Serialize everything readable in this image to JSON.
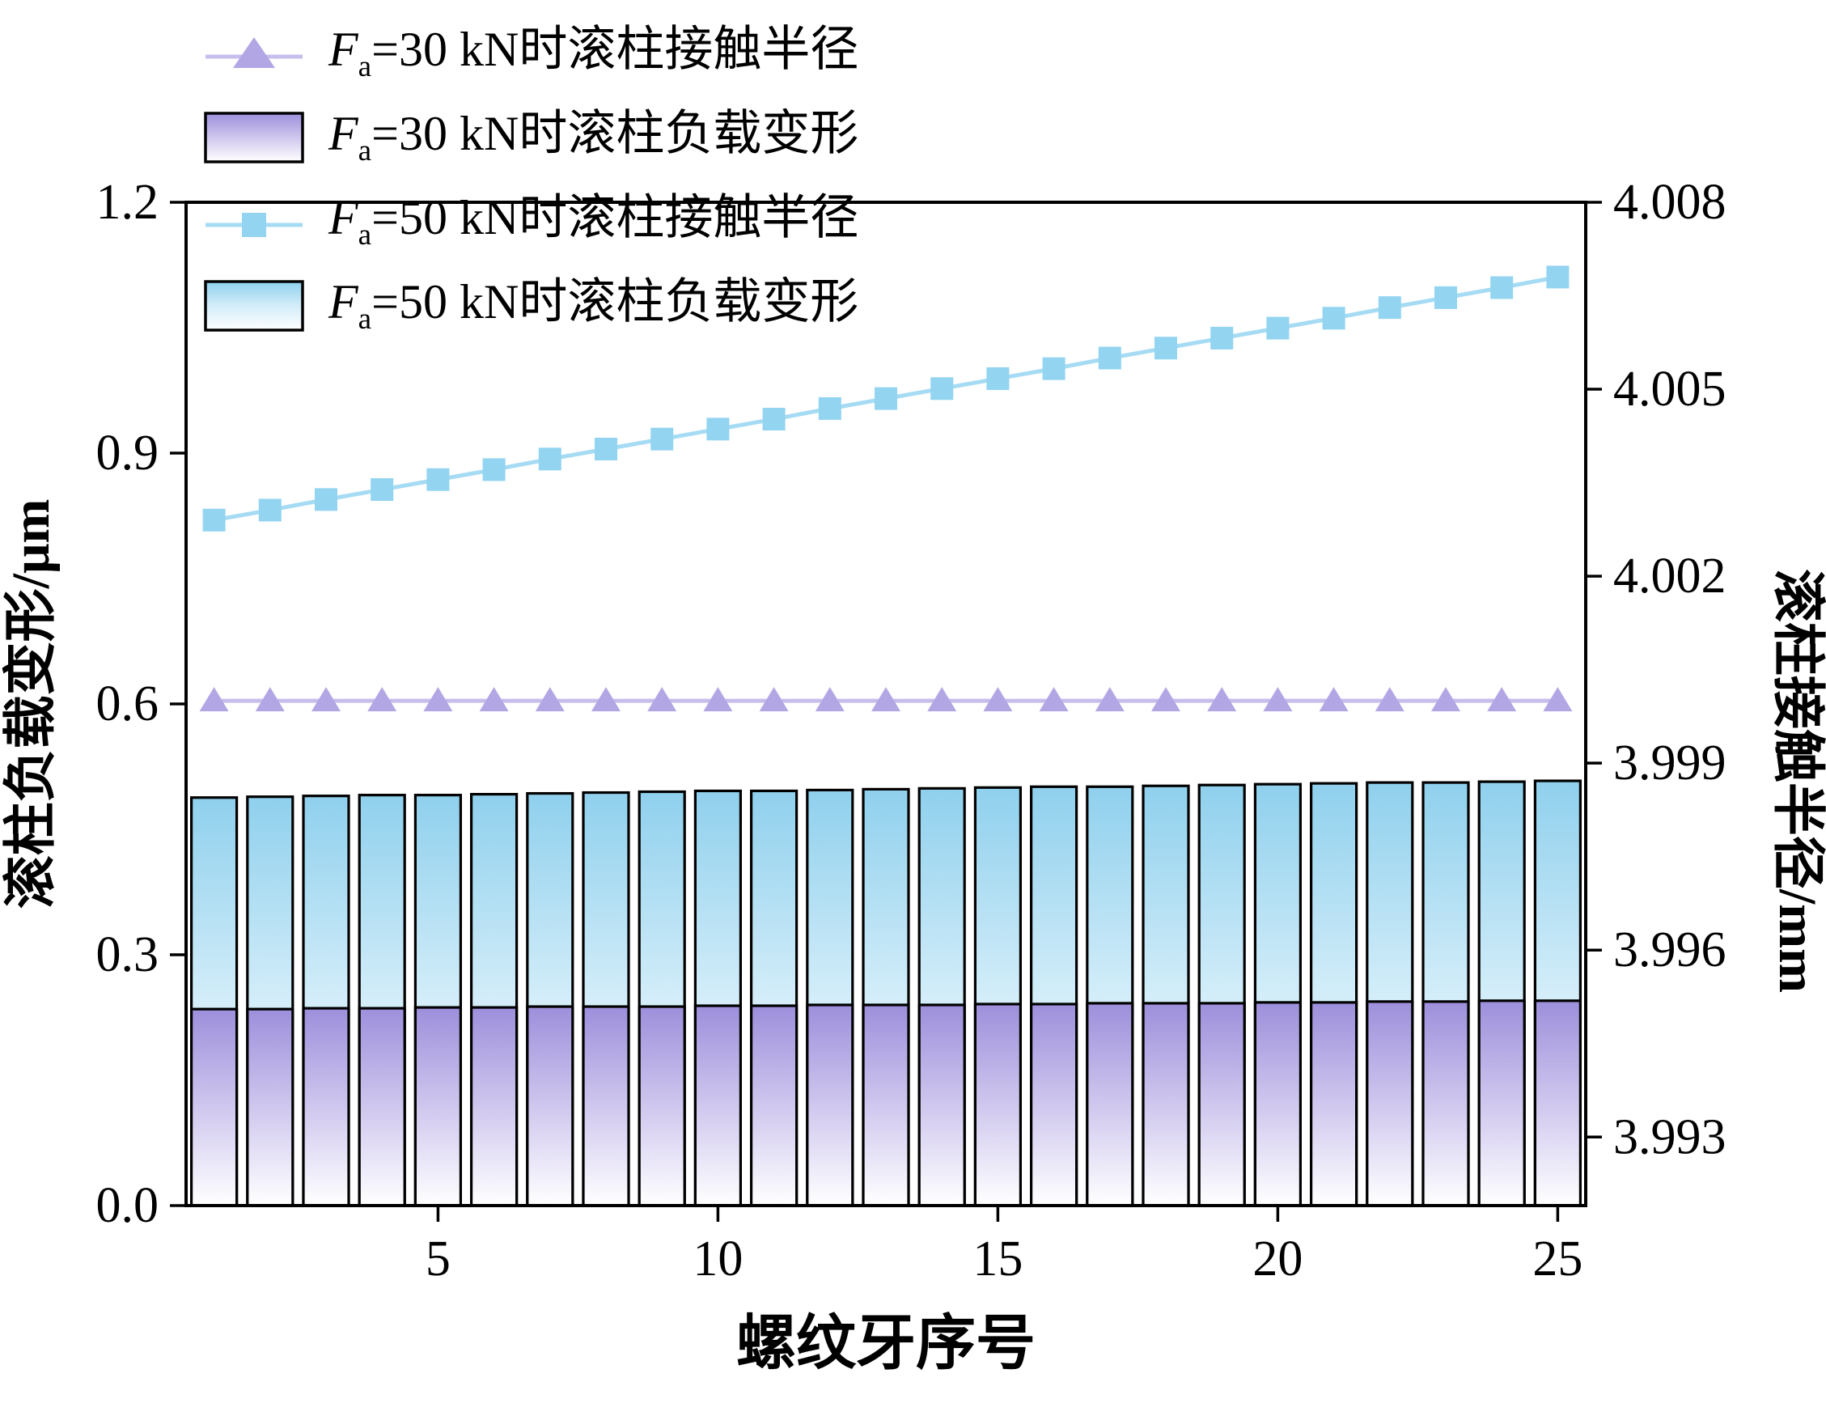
{
  "legend": {
    "items": [
      {
        "f": "F",
        "sub": "a",
        "rest": "=30 kN时滚柱接触半径",
        "type": "line-triangle"
      },
      {
        "f": "F",
        "sub": "a",
        "rest": "=30 kN时滚柱负载变形",
        "type": "bar-purple-gradient"
      },
      {
        "f": "F",
        "sub": "a",
        "rest": "=50 kN时滚柱接触半径",
        "type": "line-square"
      },
      {
        "f": "F",
        "sub": "a",
        "rest": "=50 kN时滚柱负载变形",
        "type": "bar-blue-gradient"
      }
    ],
    "position": "top-left"
  },
  "colors": {
    "line30": "#c7beeb",
    "mark30": "#b3a6e4",
    "bar30": "#9d8fdb",
    "bar30_mid": "#cfc7ee",
    "line50": "#a5dbf3",
    "mark50": "#93d4f0",
    "bar50": "#8fd0ed",
    "bar50_mid": "#d3edf9",
    "axis": "#000000"
  },
  "chart_data": {
    "type": "mixed-bar-line",
    "title": "",
    "grid": false,
    "legend_position": "top-left",
    "x_label": "螺纹牙序号",
    "x": [
      1,
      2,
      3,
      4,
      5,
      6,
      7,
      8,
      9,
      10,
      11,
      12,
      13,
      14,
      15,
      16,
      17,
      18,
      19,
      20,
      21,
      22,
      23,
      24,
      25
    ],
    "x_range": [
      0.5,
      25.5
    ],
    "x_ticks": [
      5,
      10,
      15,
      20,
      25
    ],
    "x_tick_labels": [
      "5",
      "10",
      "15",
      "20",
      "25"
    ],
    "y_left": {
      "label": "滚柱负载变形/μm",
      "range": [
        0,
        1.2
      ],
      "ticks": [
        0.0,
        0.3,
        0.6,
        0.9,
        1.2
      ],
      "tick_labels": [
        "0.0",
        "0.3",
        "0.6",
        "0.9",
        "1.2"
      ]
    },
    "y_right": {
      "label": "滚柱接触半径/mm",
      "range": [
        3.9919,
        4.008
      ],
      "ticks": [
        3.993,
        3.996,
        3.999,
        4.002,
        4.005,
        4.008
      ],
      "tick_labels": [
        "3.993",
        "3.996",
        "3.999",
        "4.002",
        "4.005",
        "4.008"
      ]
    },
    "series": [
      {
        "name": "Fa=30 kN时滚柱接触半径",
        "type": "line",
        "marker": "triangle",
        "axis": "right",
        "color": "30",
        "values": [
          4.0,
          4.0,
          4.0,
          4.0,
          4.0,
          4.0,
          4.0,
          4.0,
          4.0,
          4.0,
          4.0,
          4.0,
          4.0,
          4.0,
          4.0,
          4.0,
          4.0,
          4.0,
          4.0,
          4.0,
          4.0,
          4.0,
          4.0,
          4.0,
          4.0
        ]
      },
      {
        "name": "Fa=30 kN时滚柱负载变形",
        "type": "bar",
        "axis": "left",
        "color": "30",
        "values": [
          0.235,
          0.235,
          0.236,
          0.236,
          0.237,
          0.237,
          0.238,
          0.238,
          0.238,
          0.239,
          0.239,
          0.24,
          0.24,
          0.24,
          0.241,
          0.241,
          0.242,
          0.242,
          0.242,
          0.243,
          0.243,
          0.244,
          0.244,
          0.245,
          0.245
        ]
      },
      {
        "name": "Fa=50 kN时滚柱接触半径",
        "type": "line",
        "marker": "square",
        "axis": "right",
        "color": "50",
        "values": [
          4.0029,
          4.00306,
          4.00323,
          4.00339,
          4.00355,
          4.00371,
          4.00388,
          4.00404,
          4.0042,
          4.00436,
          4.00452,
          4.00469,
          4.00485,
          4.00501,
          4.00517,
          4.00533,
          4.0055,
          4.00566,
          4.00582,
          4.00598,
          4.00614,
          4.00631,
          4.00647,
          4.00663,
          4.0068
        ]
      },
      {
        "name": "Fa=50 kN时滚柱负载变形",
        "type": "bar",
        "axis": "left",
        "color": "50",
        "values": [
          0.488,
          0.489,
          0.49,
          0.491,
          0.491,
          0.492,
          0.493,
          0.494,
          0.495,
          0.496,
          0.496,
          0.497,
          0.498,
          0.499,
          0.5,
          0.501,
          0.501,
          0.502,
          0.503,
          0.504,
          0.505,
          0.506,
          0.506,
          0.507,
          0.508
        ]
      }
    ]
  }
}
